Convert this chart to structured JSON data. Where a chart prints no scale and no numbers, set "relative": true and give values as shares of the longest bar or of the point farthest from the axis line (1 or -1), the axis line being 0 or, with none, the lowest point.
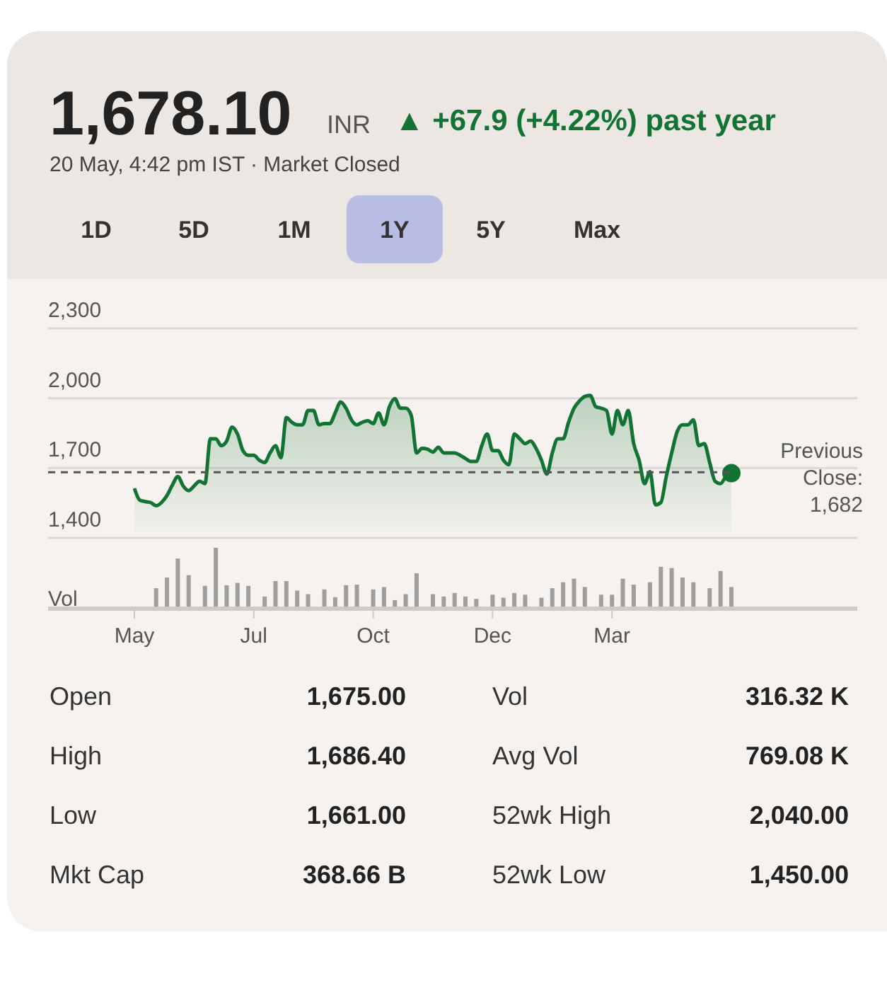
{
  "chart_data": [
    {
      "type": "other",
      "title": "1,678.10",
      "annotations": [
        "INR",
        "▲ +67.9 (+4.22%) past year",
        "20 May, 4:42 pm IST · Market Closed",
        "1D",
        "5D",
        "1M",
        "1Y",
        "5Y",
        "Max"
      ]
    },
    {
      "type": "area",
      "tick_labels": "y",
      "grid": "y",
      "ylim": [
        1400,
        2300
      ],
      "yticks": [
        {
          "value": 1400,
          "label": "1,400"
        },
        {
          "value": 1700,
          "label": "1,700"
        },
        {
          "value": 2000,
          "label": "2,000"
        },
        {
          "value": 2300,
          "label": "2,300"
        }
      ],
      "categories": [
        null,
        null,
        null,
        null,
        null,
        null,
        null,
        null,
        null,
        null,
        null,
        null,
        null,
        null,
        null,
        null,
        null,
        null,
        null,
        null,
        null,
        null,
        null,
        null,
        null,
        null,
        null,
        null,
        null,
        null,
        null,
        null,
        null,
        null,
        null,
        null,
        null,
        null,
        null,
        null,
        null,
        null,
        null,
        null,
        null,
        null,
        null,
        null,
        null,
        null,
        null,
        null,
        null,
        null,
        null,
        null,
        null,
        null,
        null,
        null,
        null,
        null,
        null,
        null,
        null,
        null,
        null,
        null,
        null,
        null,
        null,
        null,
        null,
        null,
        null,
        null,
        null,
        null,
        null,
        null,
        null,
        null,
        null,
        null,
        null,
        null,
        null,
        null,
        null,
        null,
        null,
        null,
        null,
        null,
        null,
        null,
        null,
        null,
        null,
        null,
        null,
        null,
        null,
        null,
        null,
        null,
        null,
        null,
        null,
        null,
        null
      ],
      "series": [
        {
          "color": "#137333",
          "values": [
            1613,
            1562,
            1556,
            1552,
            1538,
            1552,
            1582,
            1627,
            1664,
            1623,
            1603,
            1623,
            1643,
            1633,
            1826,
            1826,
            1796,
            1816,
            1876,
            1846,
            1775,
            1755,
            1755,
            1734,
            1724,
            1765,
            1796,
            1745,
            1917,
            1897,
            1886,
            1886,
            1947,
            1947,
            1886,
            1891,
            1891,
            1937,
            1984,
            1957,
            1907,
            1886,
            1897,
            1903,
            1891,
            1937,
            1886,
            1964,
            1998,
            1957,
            1957,
            1927,
            1765,
            1785,
            1781,
            1769,
            1789,
            1765,
            1765,
            1765,
            1755,
            1741,
            1728,
            1728,
            1796,
            1846,
            1775,
            1775,
            1734,
            1714,
            1846,
            1826,
            1805,
            1816,
            1785,
            1734,
            1674,
            1765,
            1826,
            1826,
            1897,
            1957,
            1988,
            2008,
            2012,
            1964,
            1957,
            1947,
            1846,
            1947,
            1886,
            1947,
            1805,
            1734,
            1633,
            1684,
            1542,
            1552,
            1664,
            1765,
            1856,
            1886,
            1886,
            1907,
            1796,
            1805,
            1724,
            1643,
            1633,
            1664,
            1678
          ]
        }
      ],
      "ref_lines": [
        {
          "axis": "y",
          "value": 1682,
          "label": "Previous Close: 1,682",
          "color": "#555555",
          "line_style": "dashed"
        }
      ]
    },
    {
      "type": "bar",
      "relative": true,
      "ylabel": "Vol",
      "tick_labels": "x",
      "categories": [
        "May",
        null,
        null,
        null,
        null,
        null,
        null,
        null,
        null,
        null,
        null,
        null,
        null,
        null,
        null,
        null,
        null,
        null,
        null,
        null,
        null,
        null,
        "Jul",
        null,
        null,
        null,
        null,
        null,
        null,
        null,
        null,
        null,
        null,
        null,
        null,
        null,
        null,
        null,
        null,
        null,
        null,
        null,
        null,
        null,
        "Oct",
        null,
        null,
        null,
        null,
        null,
        null,
        null,
        null,
        null,
        null,
        null,
        null,
        null,
        null,
        null,
        null,
        null,
        null,
        null,
        null,
        null,
        "Dec",
        null,
        null,
        null,
        null,
        null,
        null,
        null,
        null,
        null,
        null,
        null,
        null,
        null,
        null,
        null,
        null,
        null,
        null,
        null,
        null,
        null,
        "Mar",
        null,
        null,
        null,
        null,
        null,
        null,
        null,
        null,
        null,
        null,
        null,
        null,
        null,
        null,
        null,
        null,
        null,
        null,
        null,
        null,
        null,
        null
      ],
      "series": [
        {
          "color": "#9e9e9e",
          "values": [
            null,
            null,
            null,
            null,
            0.32,
            null,
            0.5,
            null,
            0.82,
            null,
            0.54,
            null,
            null,
            0.36,
            null,
            1,
            null,
            0.37,
            null,
            0.41,
            null,
            0.36,
            null,
            null,
            0.18,
            null,
            0.44,
            null,
            0.44,
            null,
            0.28,
            null,
            0.22,
            null,
            null,
            0.3,
            null,
            0.17,
            null,
            0.37,
            null,
            0.38,
            null,
            null,
            0.3,
            null,
            0.34,
            null,
            0.12,
            null,
            0.22,
            null,
            0.57,
            null,
            null,
            0.22,
            null,
            0.18,
            null,
            0.24,
            null,
            0.18,
            null,
            0.14,
            null,
            null,
            0.21,
            null,
            0.16,
            null,
            0.24,
            null,
            0.21,
            null,
            null,
            0.16,
            null,
            0.32,
            null,
            0.42,
            null,
            0.48,
            null,
            0.34,
            null,
            null,
            0.21,
            null,
            0.21,
            null,
            0.48,
            null,
            0.38,
            null,
            null,
            0.42,
            null,
            0.68,
            null,
            0.66,
            null,
            0.5,
            null,
            0.42,
            null,
            null,
            0.32,
            null,
            0.61,
            null,
            0.34
          ]
        }
      ]
    },
    {
      "type": "other",
      "annotations": [
        "Open",
        "1,675.00",
        "Vol",
        "316.32 K",
        "High",
        "1,686.40",
        "Avg Vol",
        "769.08 K",
        "Low",
        "1,661.00",
        "52wk High",
        "2,040.00",
        "Mkt Cap",
        "368.66 B",
        "52wk Low",
        "1,450.00"
      ]
    }
  ]
}
